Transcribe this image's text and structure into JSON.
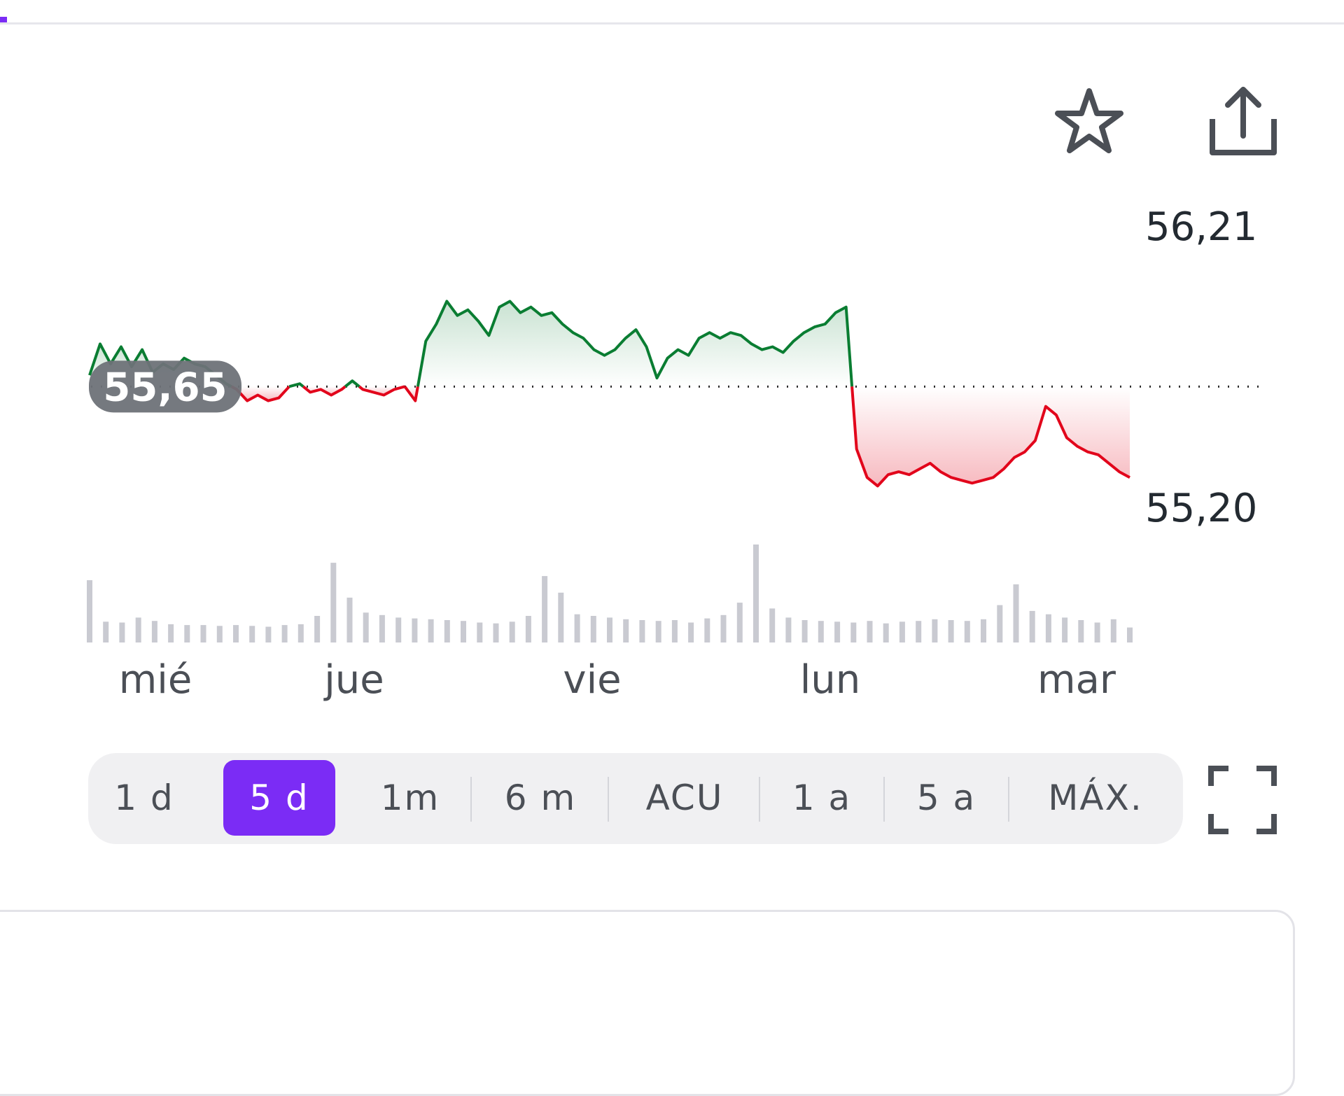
{
  "toolbar": {
    "star_icon": "star-icon",
    "share_icon": "share-icon"
  },
  "chart_data": {
    "type": "line",
    "reference_value": "55,65",
    "y_ticks": [
      "56,21",
      "55,20"
    ],
    "ylim": [
      55.2,
      56.21
    ],
    "x_labels": [
      "mié",
      "jue",
      "vie",
      "lun",
      "mar"
    ],
    "series": [
      {
        "values": [
          55.69,
          55.8,
          55.73,
          55.79,
          55.72,
          55.78,
          55.7,
          55.73,
          55.71,
          55.75,
          55.73,
          55.72,
          55.69,
          55.66,
          55.64,
          55.6,
          55.62,
          55.6,
          55.61,
          55.65,
          55.66,
          55.63,
          55.64,
          55.62,
          55.64,
          55.67,
          55.64,
          55.63,
          55.62,
          55.64,
          55.65,
          55.6,
          55.81,
          55.87,
          55.95,
          55.9,
          55.92,
          55.88,
          55.83,
          55.93,
          55.95,
          55.91,
          55.93,
          55.9,
          55.91,
          55.87,
          55.84,
          55.82,
          55.78,
          55.76,
          55.78,
          55.82,
          55.85,
          55.79,
          55.68,
          55.75,
          55.78,
          55.76,
          55.82,
          55.84,
          55.82,
          55.84,
          55.83,
          55.8,
          55.78,
          55.79,
          55.77,
          55.81,
          55.84,
          55.86,
          55.87,
          55.91,
          55.93,
          55.43,
          55.33,
          55.3,
          55.34,
          55.35,
          55.34,
          55.36,
          55.38,
          55.35,
          55.33,
          55.32,
          55.31,
          55.32,
          55.33,
          55.36,
          55.4,
          55.42,
          55.46,
          55.58,
          55.55,
          55.47,
          55.44,
          55.42,
          55.41,
          55.38,
          55.35,
          55.33
        ],
        "color_up": "#0a7d32",
        "color_down": "#e2051b"
      }
    ],
    "volume": [
      75,
      25,
      24,
      30,
      26,
      22,
      21,
      21,
      20,
      21,
      20,
      19,
      21,
      22,
      32,
      96,
      54,
      36,
      33,
      30,
      29,
      28,
      27,
      26,
      24,
      23,
      25,
      32,
      80,
      60,
      34,
      32,
      30,
      28,
      27,
      26,
      27,
      24,
      29,
      33,
      48,
      118,
      41,
      30,
      27,
      26,
      25,
      24,
      26,
      23,
      25,
      26,
      28,
      27,
      26,
      28,
      45,
      70,
      38,
      34,
      30,
      27,
      24,
      28,
      18
    ],
    "grid": false
  },
  "range_tabs": [
    {
      "label": "1 d"
    },
    {
      "label": "5 d"
    },
    {
      "label": "1m"
    },
    {
      "label": "6 m"
    },
    {
      "label": "ACU"
    },
    {
      "label": "1 a"
    },
    {
      "label": "5 a"
    },
    {
      "label": "MÁX."
    }
  ],
  "selected_range": "5 d",
  "colors": {
    "accent": "#7b2cf5",
    "up": "#0a7d32",
    "down": "#e2051b"
  }
}
